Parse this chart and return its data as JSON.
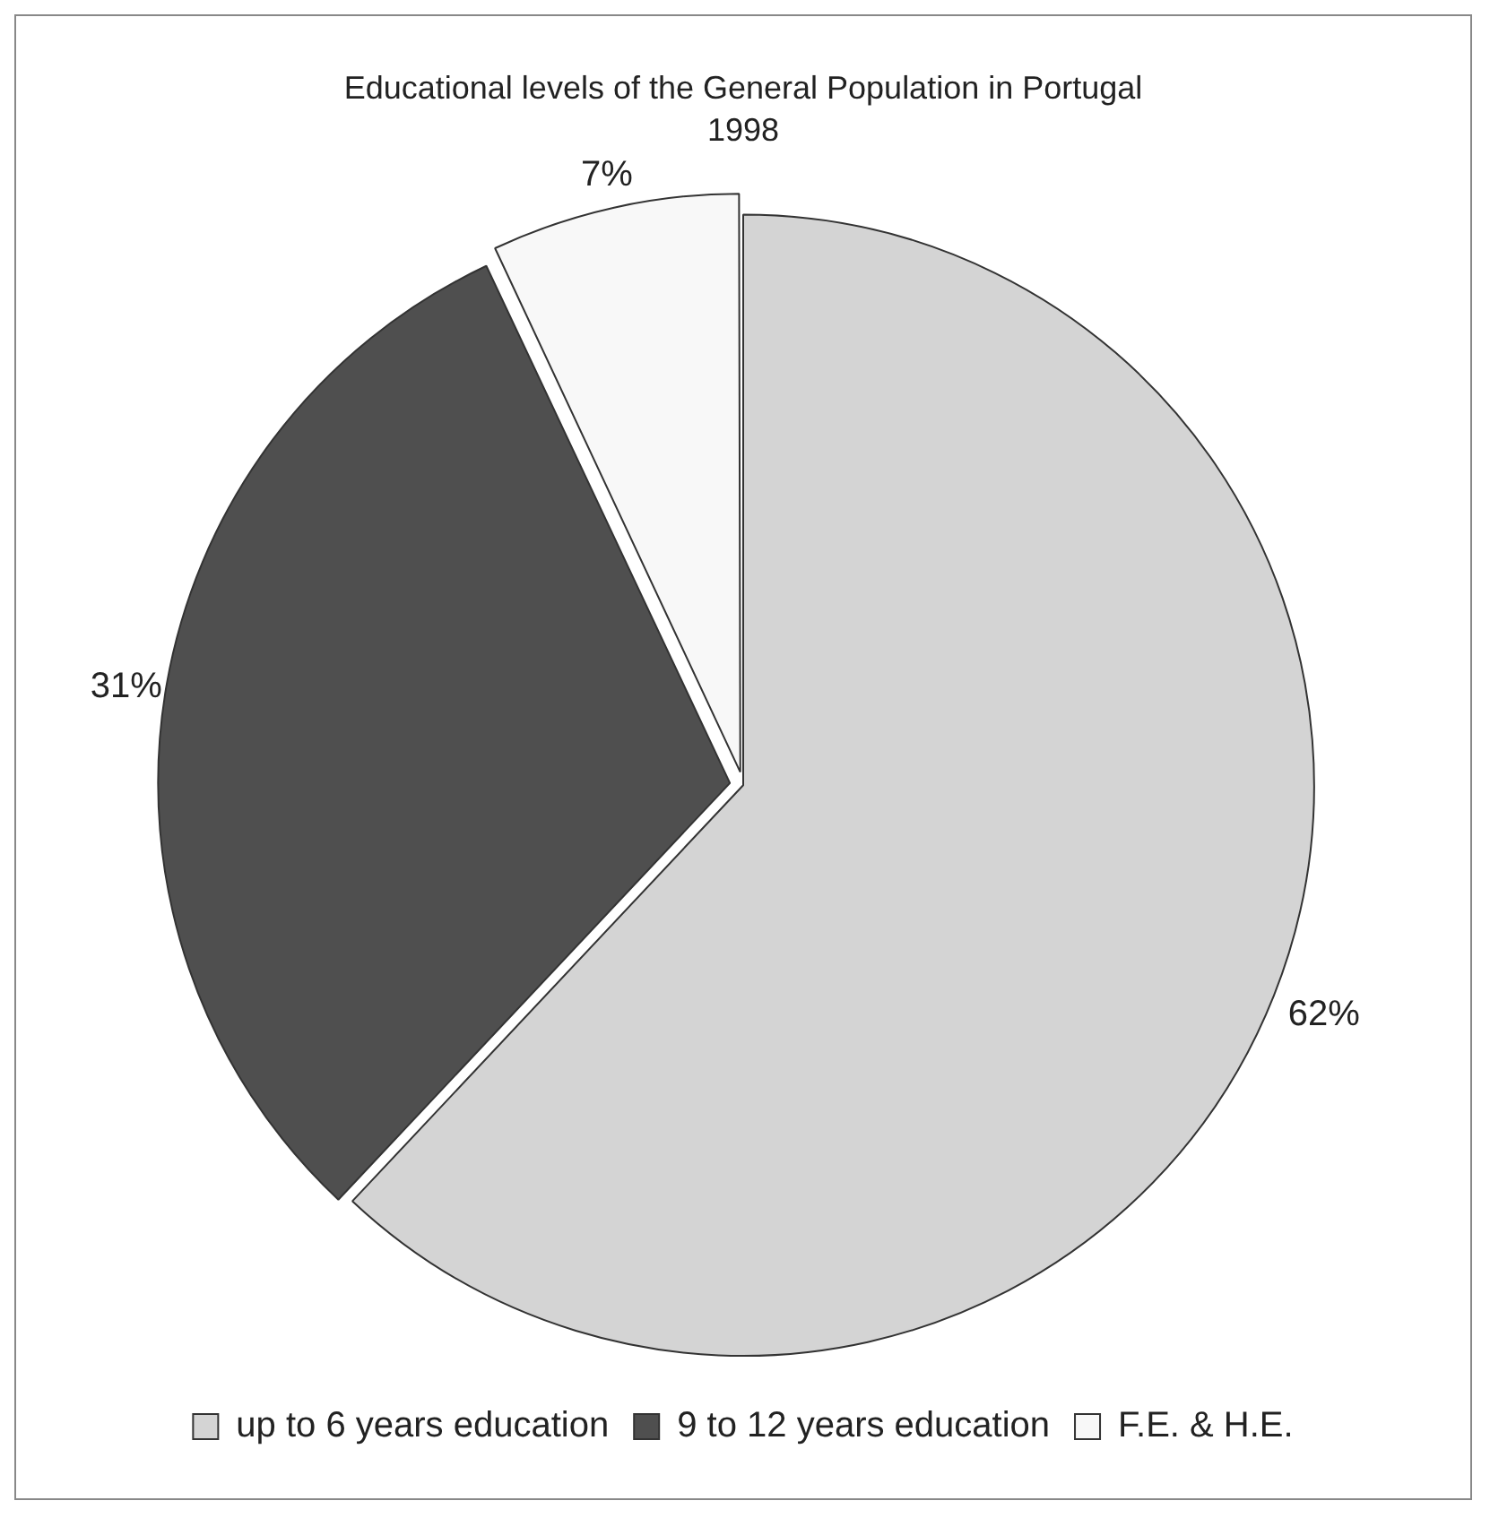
{
  "chart_data": {
    "type": "pie",
    "title": "Educational levels of the General Population in Portugal",
    "subtitle": "1998",
    "categories": [
      "up to 6 years education",
      "9 to 12 years education",
      "F.E. & H.E."
    ],
    "values": [
      62,
      31,
      7
    ],
    "colors": [
      "#d4d4d4",
      "#4f4f4f",
      "#f8f8f8"
    ],
    "value_labels": [
      "62%",
      "31%",
      "7%"
    ],
    "legend": "bottom"
  }
}
